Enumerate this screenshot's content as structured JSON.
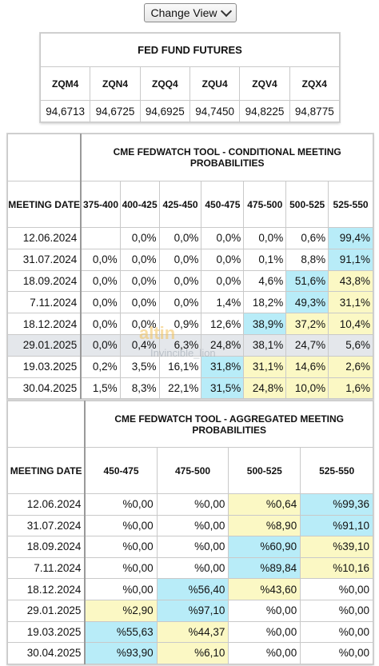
{
  "topbar": {
    "change_view_label": "Change View"
  },
  "fed_funds": {
    "title": "FED FUND FUTURES",
    "codes": [
      "ZQM4",
      "ZQN4",
      "ZQQ4",
      "ZQU4",
      "ZQV4",
      "ZQX4"
    ],
    "values": [
      "94,6713",
      "94,6725",
      "94,6925",
      "94,7450",
      "94,8225",
      "94,8775"
    ]
  },
  "conditional": {
    "title": "CME FEDWATCH TOOL - CONDITIONAL MEETING PROBABILITIES",
    "meeting_header": "MEETING DATE",
    "columns": [
      "375-400",
      "400-425",
      "425-450",
      "450-475",
      "475-500",
      "500-525",
      "525-550"
    ],
    "rows": [
      {
        "date": "12.06.2024",
        "cells": [
          "",
          "0,0%",
          "0,0%",
          "0,0%",
          "0,0%",
          "0,6%",
          "99,4%"
        ]
      },
      {
        "date": "31.07.2024",
        "cells": [
          "0,0%",
          "0,0%",
          "0,0%",
          "0,0%",
          "0,1%",
          "8,8%",
          "91,1%"
        ]
      },
      {
        "date": "18.09.2024",
        "cells": [
          "0,0%",
          "0,0%",
          "0,0%",
          "0,0%",
          "4,6%",
          "51,6%",
          "43,8%"
        ]
      },
      {
        "date": "7.11.2024",
        "cells": [
          "0,0%",
          "0,0%",
          "0,0%",
          "1,4%",
          "18,2%",
          "49,3%",
          "31,1%"
        ]
      },
      {
        "date": "18.12.2024",
        "cells": [
          "0,0%",
          "0,0%",
          "0,9%",
          "12,6%",
          "38,9%",
          "37,2%",
          "10,4%"
        ]
      },
      {
        "date": "29.01.2025",
        "cells": [
          "0,0%",
          "0,4%",
          "6,3%",
          "24,8%",
          "38,1%",
          "24,7%",
          "5,6%"
        ]
      },
      {
        "date": "19.03.2025",
        "cells": [
          "0,2%",
          "3,5%",
          "16,1%",
          "31,8%",
          "31,1%",
          "14,6%",
          "2,6%"
        ]
      },
      {
        "date": "30.04.2025",
        "cells": [
          "1,5%",
          "8,3%",
          "22,1%",
          "31,5%",
          "24,8%",
          "10,0%",
          "1,6%"
        ]
      }
    ]
  },
  "aggregated": {
    "title": "CME FEDWATCH TOOL - AGGREGATED MEETING PROBABILITIES",
    "meeting_header": "MEETING DATE",
    "columns": [
      "450-475",
      "475-500",
      "500-525",
      "525-550"
    ],
    "rows": [
      {
        "date": "12.06.2024",
        "cells": [
          "%0,00",
          "%0,00",
          "%0,64",
          "%99,36"
        ]
      },
      {
        "date": "31.07.2024",
        "cells": [
          "%0,00",
          "%0,00",
          "%8,90",
          "%91,10"
        ]
      },
      {
        "date": "18.09.2024",
        "cells": [
          "%0,00",
          "%0,00",
          "%60,90",
          "%39,10"
        ]
      },
      {
        "date": "7.11.2024",
        "cells": [
          "%0,00",
          "%0,00",
          "%89,84",
          "%10,16"
        ]
      },
      {
        "date": "18.12.2024",
        "cells": [
          "%0,00",
          "%56,40",
          "%43,60",
          "%0,00"
        ]
      },
      {
        "date": "29.01.2025",
        "cells": [
          "%2,90",
          "%97,10",
          "%0,00",
          "%0,00"
        ]
      },
      {
        "date": "19.03.2025",
        "cells": [
          "%55,63",
          "%44,37",
          "%0,00",
          "%0,00"
        ]
      },
      {
        "date": "30.04.2025",
        "cells": [
          "%93,90",
          "%6,10",
          "%0,00",
          "%0,00"
        ]
      }
    ]
  },
  "watermark": {
    "logo_text": "altin",
    "username": "Invincible_lion"
  },
  "colors": {
    "highlight_blue": "#b8ecf8",
    "highlight_yellow": "#fbf8c4",
    "hover_row": "#e4e7eb"
  }
}
